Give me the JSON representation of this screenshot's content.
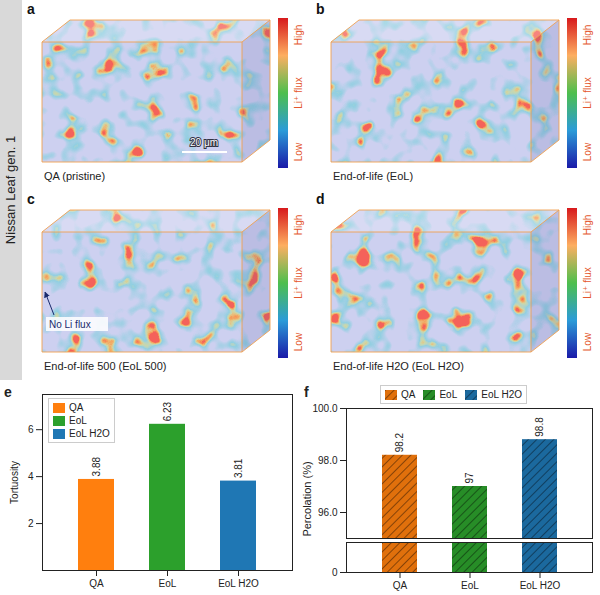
{
  "row_label": "Nissan Leaf gen. 1",
  "image_panels": [
    {
      "panel_label": "a",
      "caption": "QA (pristine)",
      "colorbar": {
        "label": "Li⁺ flux",
        "high": "High",
        "low": "Low"
      },
      "scale_bar": "20 μm"
    },
    {
      "panel_label": "b",
      "caption": "End-of-life (EoL)",
      "colorbar": {
        "label": "Li⁺ flux",
        "high": "High",
        "low": "Low"
      }
    },
    {
      "panel_label": "c",
      "caption": "End-of-life 500 (EoL 500)",
      "colorbar": {
        "label": "Li⁺ flux",
        "high": "High",
        "low": "Low"
      },
      "annotation": "No Li flux"
    },
    {
      "panel_label": "d",
      "caption": "End-of-life H2O (EoL H2O)",
      "colorbar": {
        "label": "Li⁺ flux",
        "high": "High",
        "low": "Low"
      }
    }
  ],
  "chart_data": [
    {
      "panel_label": "e",
      "type": "bar",
      "ylabel": "Tortuosity",
      "categories": [
        "QA",
        "EoL",
        "EoL H2O"
      ],
      "values": [
        3.88,
        6.23,
        3.81
      ],
      "colors": [
        "#ff7f0e",
        "#2ca02c",
        "#1f77b4"
      ],
      "ylim": [
        0,
        7.5
      ],
      "yticks": [
        2,
        4,
        6
      ],
      "grid": false,
      "data_labels": true,
      "legend": "upper left"
    },
    {
      "panel_label": "f",
      "type": "bar",
      "ylabel": "Percolation (%)",
      "categories": [
        "QA",
        "EoL",
        "EoL H2O"
      ],
      "values": [
        98.2,
        97,
        98.8
      ],
      "colors": [
        "#ff7f0e",
        "#2ca02c",
        "#1f77b4"
      ],
      "ylim": [
        [
          0,
          10
        ],
        [
          95,
          100
        ]
      ],
      "yticks": [
        0,
        96,
        98,
        100
      ],
      "grid": false,
      "data_labels": true,
      "legend": "top"
    }
  ]
}
